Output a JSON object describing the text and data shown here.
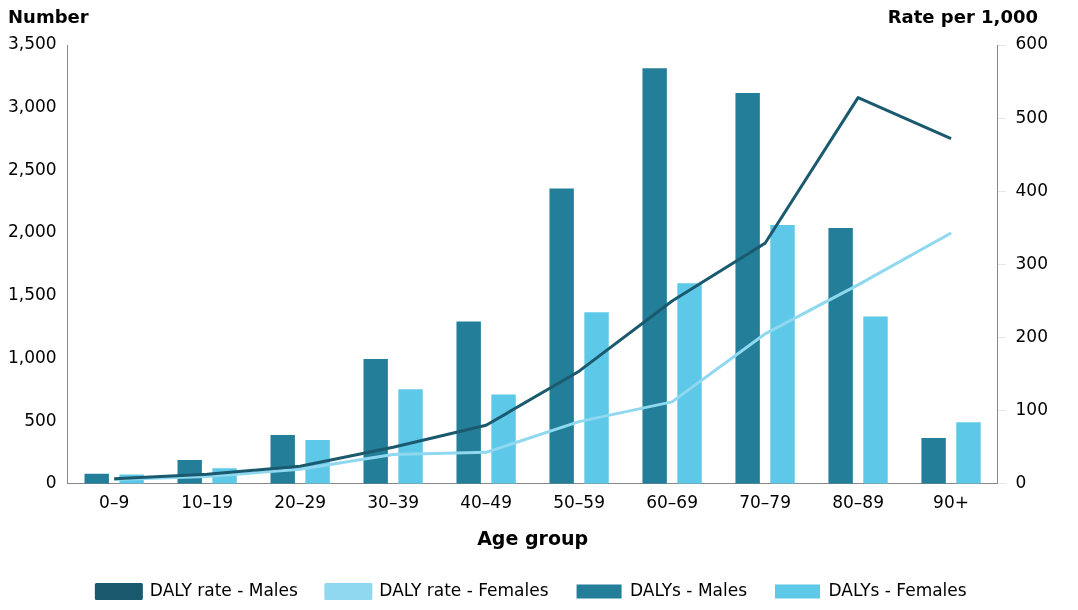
{
  "chart_data": {
    "type": "bar",
    "xlabel": "Age group",
    "ylabel": "Number",
    "y2label": "Rate per 1,000",
    "categories": [
      "0–9",
      "10–19",
      "20–29",
      "30–39",
      "40–49",
      "50–59",
      "60–69",
      "70–79",
      "80–89",
      "90+"
    ],
    "series": [
      {
        "name": "DALYs - Males",
        "color": "#237f99",
        "values": [
          80,
          190,
          390,
          995,
          1295,
          2355,
          3315,
          3118,
          2040,
          365
        ]
      },
      {
        "name": "DALYs - Females",
        "color": "#5ec8e8",
        "values": [
          75,
          125,
          350,
          755,
          713,
          1368,
          1600,
          2065,
          1335,
          490
        ]
      },
      {
        "name": "DALY rate - Males",
        "type": "line",
        "axis": "y2",
        "color": "#1b5a6e",
        "values": [
          7,
          13,
          24,
          50,
          80,
          154,
          250,
          329,
          528,
          472
        ]
      },
      {
        "name": "DALY rate - Females",
        "type": "line",
        "axis": "y2",
        "color": "#8fd8f0",
        "values": [
          6,
          10,
          20,
          40,
          43,
          85,
          112,
          205,
          272,
          343
        ]
      }
    ],
    "ylim": [
      0,
      3500
    ],
    "yticks": [
      0,
      500,
      {
        "value": 1000,
        "label": "1,000"
      },
      {
        "value": 1500,
        "label": "1,500"
      },
      {
        "value": 2000,
        "label": "2,000"
      },
      {
        "value": 2500,
        "label": "2,500"
      },
      {
        "value": 3000,
        "label": "3,000"
      },
      {
        "value": 3500,
        "label": "3,500"
      }
    ],
    "y2lim": [
      0,
      600
    ],
    "y2ticks": [
      0,
      100,
      200,
      300,
      400,
      500,
      600
    ],
    "grid": false,
    "legend": "bottom",
    "marker": "none"
  }
}
